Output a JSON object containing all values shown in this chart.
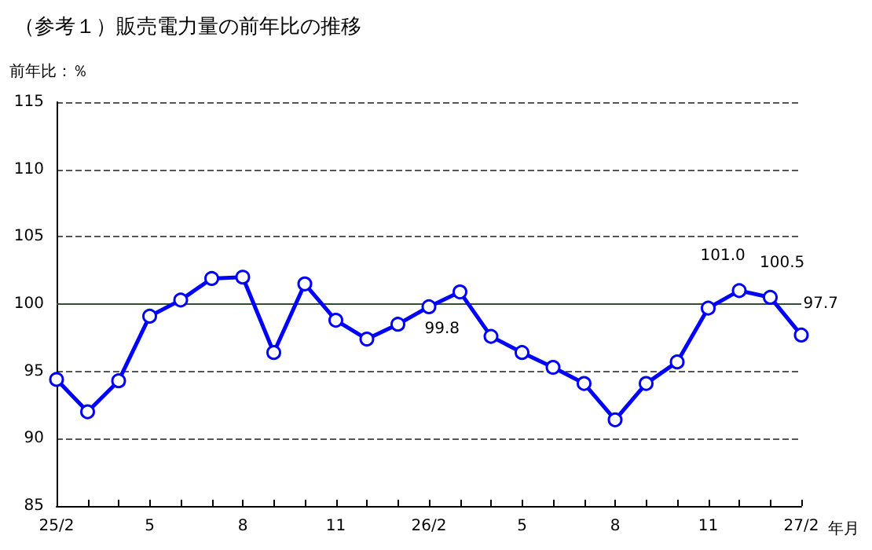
{
  "chart_data": {
    "type": "line",
    "title": "（参考１）販売電力量の前年比の推移",
    "ylabel": "前年比：％",
    "xlabel": "年月",
    "categories": [
      "25/2",
      null,
      null,
      "5",
      null,
      null,
      "8",
      null,
      null,
      "11",
      null,
      null,
      "26/2",
      null,
      null,
      "5",
      null,
      null,
      "8",
      null,
      null,
      "11",
      null,
      null,
      "27/2"
    ],
    "series": [
      {
        "color": "#0000ff",
        "values": [
          94.4,
          92.0,
          94.3,
          99.1,
          100.3,
          101.9,
          102.0,
          96.4,
          101.5,
          98.8,
          97.4,
          98.5,
          99.8,
          100.9,
          97.6,
          96.4,
          95.3,
          94.1,
          91.4,
          94.1,
          95.7,
          99.7,
          101.0,
          100.5,
          97.7
        ],
        "value_labels": [
          null,
          null,
          null,
          null,
          null,
          null,
          null,
          null,
          null,
          null,
          null,
          null,
          "99.8",
          null,
          null,
          null,
          null,
          null,
          null,
          null,
          null,
          null,
          "101.0",
          "100.5",
          "97.7"
        ]
      }
    ],
    "ylim": [
      85,
      115
    ],
    "yticks": [
      85,
      90,
      95,
      100,
      105,
      110,
      115
    ],
    "grid": "y",
    "marker": "circle",
    "line_style": "solid",
    "ref_lines": [
      {
        "axis": "y",
        "value": 100,
        "color": "#2f4f2f",
        "line_style": "solid"
      }
    ]
  }
}
